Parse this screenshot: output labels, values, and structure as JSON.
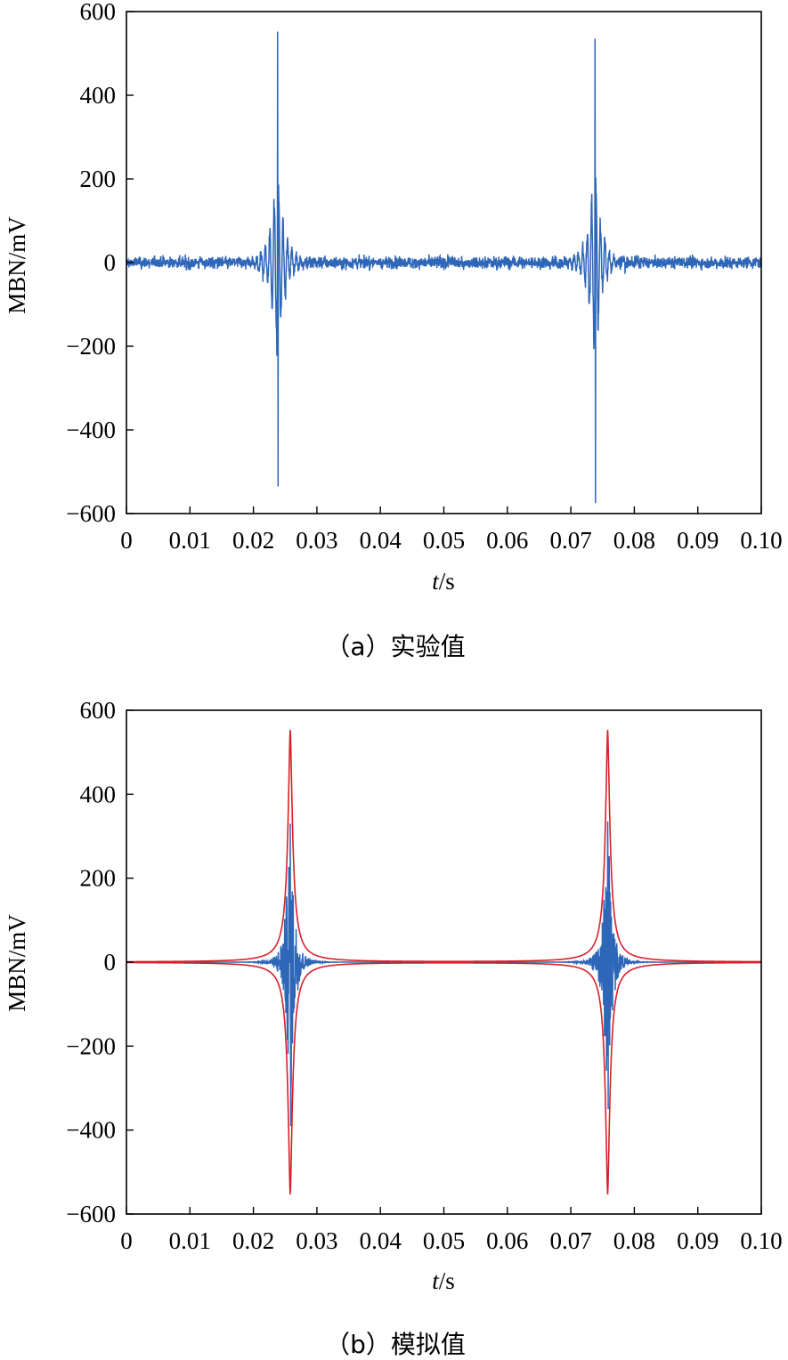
{
  "chart_data": [
    {
      "type": "line",
      "caption": "（a）实验值",
      "xlabel_italic": "t",
      "xlabel_unit": "/s",
      "ylabel": "MBN/mV",
      "xlim": [
        0,
        0.1
      ],
      "ylim": [
        -600,
        600
      ],
      "xticks": [
        "0",
        "0.01",
        "0.02",
        "0.03",
        "0.04",
        "0.05",
        "0.06",
        "0.07",
        "0.08",
        "0.09",
        "0.10"
      ],
      "yticks": [
        "600",
        "400",
        "200",
        "0",
        "−200",
        "−400",
        "−600"
      ],
      "series": [
        {
          "color": "#2e66b8",
          "bursts": [
            {
              "center": 0.0238,
              "max": 552,
              "min": -535
            },
            {
              "center": 0.0738,
              "max": 535,
              "min": -575
            }
          ],
          "noise_amplitude": 12
        }
      ]
    },
    {
      "type": "line",
      "caption": "（b）模拟值",
      "xlabel_italic": "t",
      "xlabel_unit": "/s",
      "ylabel": "MBN/mV",
      "xlim": [
        0,
        0.1
      ],
      "ylim": [
        -600,
        600
      ],
      "xticks": [
        "0",
        "0.01",
        "0.02",
        "0.03",
        "0.04",
        "0.05",
        "0.06",
        "0.07",
        "0.08",
        "0.09",
        "0.10"
      ],
      "yticks": [
        "600",
        "400",
        "200",
        "0",
        "−200",
        "−400",
        "−600"
      ],
      "series": [
        {
          "color": "#2e66b8",
          "bursts": [
            {
              "center": 0.0258,
              "max": 330,
              "min": -390
            },
            {
              "center": 0.0758,
              "max": 335,
              "min": -350
            }
          ]
        },
        {
          "color": "#d8202a",
          "envelope_peak": 553,
          "envelope_centers": [
            0.0258,
            0.0758
          ]
        }
      ]
    }
  ]
}
